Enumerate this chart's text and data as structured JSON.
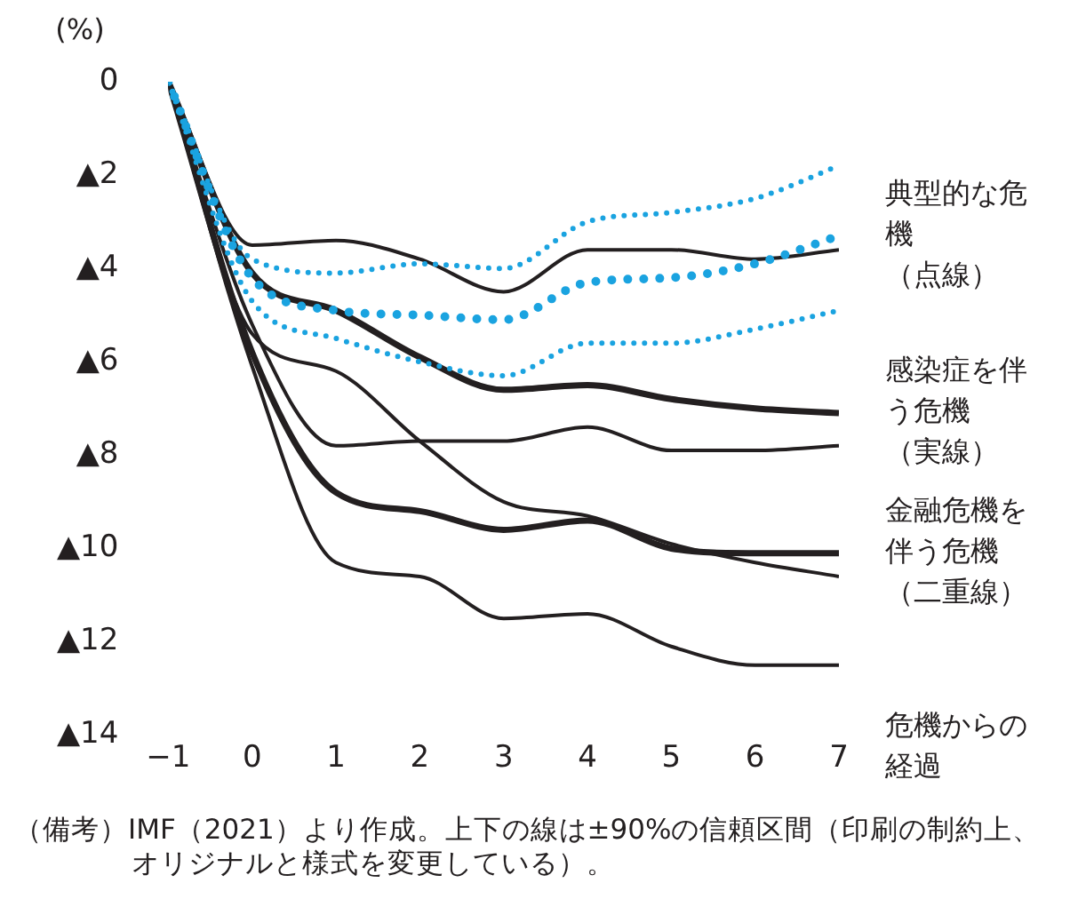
{
  "chart_data": {
    "type": "line",
    "ylabel": "(%)",
    "xlabel": "危機からの経過",
    "x": [
      -1,
      0,
      1,
      2,
      3,
      4,
      5,
      6,
      7
    ],
    "xlim": [
      -1,
      7
    ],
    "xticks": [
      {
        "value": -1,
        "label": "−1"
      },
      0,
      1,
      2,
      3,
      4,
      5,
      6,
      7
    ],
    "ylim": [
      -14,
      0
    ],
    "yticks": [
      0,
      {
        "value": -2,
        "label": "▲2"
      },
      {
        "value": -4,
        "label": "▲4"
      },
      {
        "value": -6,
        "label": "▲6"
      },
      {
        "value": -8,
        "label": "▲8"
      },
      {
        "value": -10,
        "label": "▲10"
      },
      {
        "value": -12,
        "label": "▲12"
      },
      {
        "value": -14,
        "label": "▲14"
      }
    ],
    "grid": false,
    "legend": false,
    "series": [
      {
        "color": "#1aa3e0",
        "line_style": "dotted",
        "values": [
          0,
          -3.8,
          -4.1,
          -3.9,
          -4.0,
          -3.0,
          -2.8,
          -2.5,
          -1.8
        ]
      },
      {
        "name": "典型的な危機（点線）",
        "color": "#1aa3e0",
        "line_style": "dotted",
        "values": [
          0,
          -4.2,
          -4.9,
          -5.0,
          -5.1,
          -4.3,
          -4.2,
          -3.9,
          -3.3
        ]
      },
      {
        "color": "#1aa3e0",
        "line_style": "dotted",
        "values": [
          0,
          -4.7,
          -5.5,
          -6.0,
          -6.3,
          -5.6,
          -5.6,
          -5.3,
          -4.9
        ]
      },
      {
        "color": "#231f20",
        "line_style": "solid",
        "values": [
          0,
          -3.5,
          -3.4,
          -3.8,
          -4.5,
          -3.6,
          -3.6,
          -3.8,
          -3.6
        ]
      },
      {
        "name": "感染症を伴う危機（実線）",
        "color": "#231f20",
        "line_style": "solid",
        "values": [
          0,
          -4.1,
          -4.9,
          -5.9,
          -6.6,
          -6.5,
          -6.8,
          -7.0,
          -7.1
        ]
      },
      {
        "color": "#231f20",
        "line_style": "solid",
        "values": [
          0,
          -5.4,
          -6.2,
          -7.7,
          -9.0,
          -9.3,
          -9.9,
          -10.3,
          -10.6
        ]
      },
      {
        "color": "#231f20",
        "values": [
          0,
          -5.2,
          -7.8,
          -7.7,
          -7.7,
          -7.4,
          -7.9,
          -7.9,
          -7.8
        ]
      },
      {
        "name": "金融危機を伴う危機（二重線）",
        "color": "#231f20",
        "values": [
          0,
          -5.8,
          -8.8,
          -9.2,
          -9.6,
          -9.4,
          -10.0,
          -10.1,
          -10.1
        ]
      },
      {
        "color": "#231f20",
        "values": [
          0,
          -6.1,
          -10.3,
          -10.6,
          -11.5,
          -11.4,
          -12.1,
          -12.5,
          -12.5
        ]
      }
    ],
    "annotations": [
      "（備考）IMF（2021）より作成。上下の線は±90%の信頼区間（印刷の制約上、オリジナルと様式を変更している）。"
    ]
  }
}
